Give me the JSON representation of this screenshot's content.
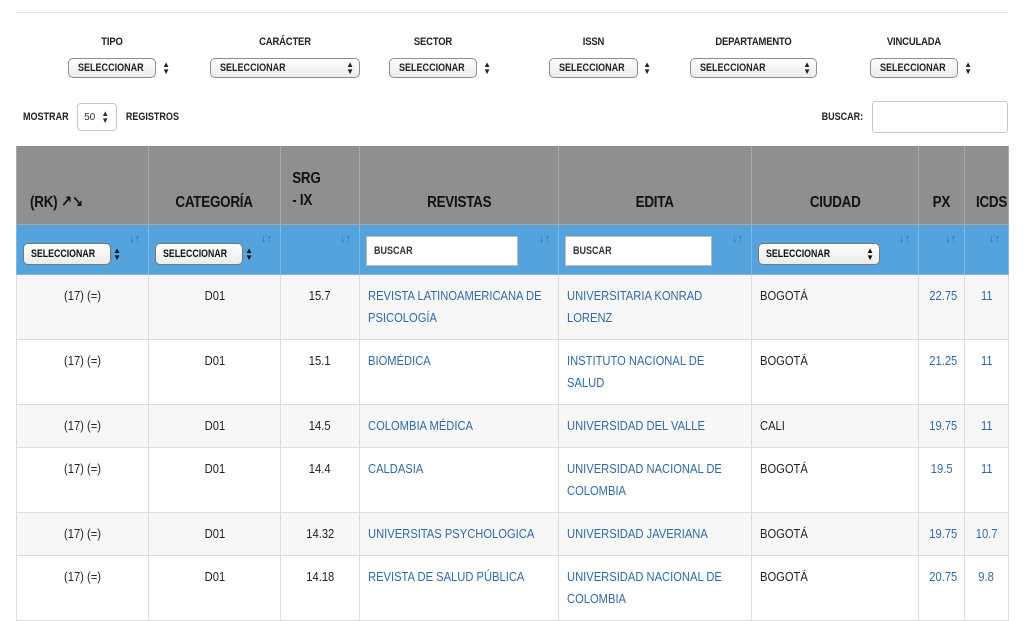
{
  "filters": [
    {
      "label": "TIPO",
      "value": "SELECCIONAR"
    },
    {
      "label": "CARÁCTER",
      "value": "SELECCIONAR"
    },
    {
      "label": "SECTOR",
      "value": "SELECCIONAR"
    },
    {
      "label": "ISSN",
      "value": "SELECCIONAR"
    },
    {
      "label": "DEPARTAMENTO",
      "value": "SELECCIONAR"
    },
    {
      "label": "VINCULADA",
      "value": "SELECCIONAR"
    }
  ],
  "length": {
    "prefix": "MOSTRAR",
    "value": "50",
    "suffix": "REGISTROS"
  },
  "search": {
    "label": "BUSCAR:",
    "value": ""
  },
  "table": {
    "headers": [
      "(RK) ↗↘",
      "CATEGORÍA",
      "SRG - IX",
      "REVISTAS",
      "EDITA",
      "CIUDAD",
      "PX",
      "ICDS"
    ],
    "col_filters": {
      "rk": "SELECCIONAR",
      "categoria": "SELECCIONAR",
      "revistas_placeholder": "BUSCAR",
      "edita_placeholder": "BUSCAR",
      "ciudad": "SELECCIONAR",
      "sort_glyph": "↓↑"
    },
    "rows": [
      {
        "rk": "(17) (=)",
        "cat": "D01",
        "srg": "15.7",
        "revista": "REVISTA LATINOAMERICANA DE PSICOLOGÍA",
        "edita": "UNIVERSITARIA KONRAD LORENZ",
        "ciudad": "BOGOTÁ",
        "px": "22.75",
        "icds": "11"
      },
      {
        "rk": "(17) (=)",
        "cat": "D01",
        "srg": "15.1",
        "revista": "BIOMÉDICA",
        "edita": "INSTITUTO NACIONAL DE SALUD",
        "ciudad": "BOGOTÁ",
        "px": "21.25",
        "icds": "11"
      },
      {
        "rk": "(17) (=)",
        "cat": "D01",
        "srg": "14.5",
        "revista": "COLOMBIA MÉDICA",
        "edita": "UNIVERSIDAD DEL VALLE",
        "ciudad": "CALI",
        "px": "19.75",
        "icds": "11"
      },
      {
        "rk": "(17) (=)",
        "cat": "D01",
        "srg": "14.4",
        "revista": "CALDASIA",
        "edita": "UNIVERSIDAD NACIONAL DE COLOMBIA",
        "ciudad": "BOGOTÁ",
        "px": "19.5",
        "icds": "11"
      },
      {
        "rk": "(17) (=)",
        "cat": "D01",
        "srg": "14.32",
        "revista": "UNIVERSITAS PSYCHOLOGICA",
        "edita": "UNIVERSIDAD JAVERIANA",
        "ciudad": "BOGOTÁ",
        "px": "19.75",
        "icds": "10.7"
      },
      {
        "rk": "(17) (=)",
        "cat": "D01",
        "srg": "14.18",
        "revista": "REVISTA DE SALUD PÚBLICA",
        "edita": "UNIVERSIDAD NACIONAL DE COLOMBIA",
        "ciudad": "BOGOTÁ",
        "px": "20.75",
        "icds": "9.8"
      }
    ]
  }
}
